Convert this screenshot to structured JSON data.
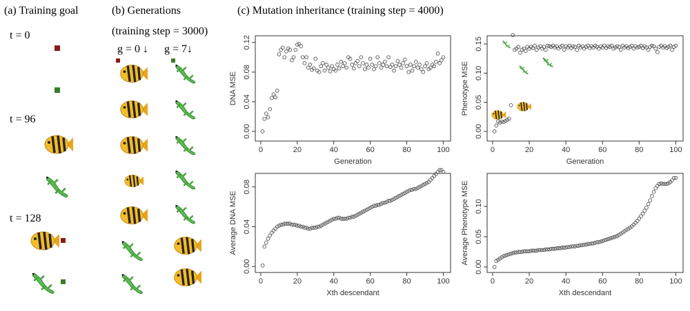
{
  "panels": {
    "a": {
      "title": "(a) Training goal",
      "labels": [
        "t = 0",
        "t = 96",
        "t = 128"
      ]
    },
    "b": {
      "title": "(b) Generations",
      "subtitle": "(training step = 3000)",
      "columns": [
        "g = 0 ↓",
        "g = 7↓"
      ]
    },
    "c": {
      "title": "(c) Mutation inheritance (training step = 4000)"
    }
  },
  "chart_data": [
    {
      "type": "scatter",
      "xlabel": "Generation",
      "ylabel": "DNA MSE",
      "x": [
        1,
        2,
        3,
        4,
        5,
        6,
        7,
        8,
        9,
        10,
        11,
        12,
        13,
        14,
        15,
        16,
        17,
        18,
        19,
        20,
        21,
        22,
        23,
        24,
        25,
        26,
        27,
        28,
        29,
        30,
        31,
        32,
        33,
        34,
        35,
        36,
        37,
        38,
        39,
        40,
        41,
        42,
        43,
        44,
        45,
        46,
        47,
        48,
        49,
        50,
        51,
        52,
        53,
        54,
        55,
        56,
        57,
        58,
        59,
        60,
        61,
        62,
        63,
        64,
        65,
        66,
        67,
        68,
        69,
        70,
        71,
        72,
        73,
        74,
        75,
        76,
        77,
        78,
        79,
        80,
        81,
        82,
        83,
        84,
        85,
        86,
        87,
        88,
        89,
        90,
        91,
        92,
        93,
        94,
        95,
        96,
        97,
        98,
        99,
        100
      ],
      "values": [
        0,
        0.017,
        0.024,
        0.019,
        0.03,
        0.045,
        0.05,
        0.046,
        0.055,
        0.104,
        0.11,
        0.113,
        0.1,
        0.108,
        0.112,
        0.11,
        0.096,
        0.1,
        0.11,
        0.117,
        0.118,
        0.115,
        0.1,
        0.092,
        0.1,
        0.086,
        0.09,
        0.083,
        0.085,
        0.098,
        0.082,
        0.08,
        0.088,
        0.092,
        0.082,
        0.09,
        0.086,
        0.081,
        0.088,
        0.084,
        0.082,
        0.09,
        0.085,
        0.094,
        0.088,
        0.092,
        0.086,
        0.1,
        0.098,
        0.09,
        0.085,
        0.092,
        0.095,
        0.088,
        0.1,
        0.092,
        0.084,
        0.09,
        0.086,
        0.098,
        0.09,
        0.084,
        0.088,
        0.1,
        0.092,
        0.086,
        0.09,
        0.094,
        0.088,
        0.1,
        0.087,
        0.09,
        0.082,
        0.088,
        0.095,
        0.09,
        0.086,
        0.092,
        0.097,
        0.088,
        0.08,
        0.09,
        0.082,
        0.088,
        0.094,
        0.086,
        0.09,
        0.084,
        0.08,
        0.088,
        0.092,
        0.084,
        0.086,
        0.09,
        0.088,
        0.094,
        0.105,
        0.092,
        0.096,
        0.1
      ],
      "xlim": [
        -3,
        104
      ],
      "ylim": [
        -0.013,
        0.129
      ],
      "xticks": [
        0,
        20,
        40,
        60,
        80,
        100
      ],
      "yticks": [
        {
          "value": 0,
          "label": "0.00"
        },
        0.04,
        0.08,
        0.12
      ]
    },
    {
      "type": "scatter",
      "xlabel": "Generation",
      "ylabel": "Phenotype MSE",
      "x": [
        1,
        2,
        3,
        4,
        5,
        6,
        7,
        8,
        9,
        10,
        11,
        12,
        13,
        14,
        15,
        16,
        17,
        18,
        19,
        20,
        21,
        22,
        23,
        24,
        25,
        26,
        27,
        28,
        29,
        30,
        31,
        32,
        33,
        34,
        35,
        36,
        37,
        38,
        39,
        40,
        41,
        42,
        43,
        44,
        45,
        46,
        47,
        48,
        49,
        50,
        51,
        52,
        53,
        54,
        55,
        56,
        57,
        58,
        59,
        60,
        61,
        62,
        63,
        64,
        65,
        66,
        67,
        68,
        69,
        70,
        71,
        72,
        73,
        74,
        75,
        76,
        77,
        78,
        79,
        80,
        81,
        82,
        83,
        84,
        85,
        86,
        87,
        88,
        89,
        90,
        91,
        92,
        93,
        94,
        95,
        96,
        97,
        98,
        99,
        100
      ],
      "values": [
        0,
        0.01,
        0.017,
        0.015,
        0.017,
        0.016,
        0.018,
        0.02,
        0.022,
        0.045,
        0.165,
        0.14,
        0.142,
        0.145,
        0.135,
        0.14,
        0.142,
        0.138,
        0.145,
        0.142,
        0.145,
        0.143,
        0.147,
        0.14,
        0.144,
        0.146,
        0.142,
        0.145,
        0.14,
        0.147,
        0.146,
        0.145,
        0.147,
        0.144,
        0.146,
        0.142,
        0.145,
        0.147,
        0.14,
        0.146,
        0.144,
        0.147,
        0.143,
        0.146,
        0.145,
        0.14,
        0.147,
        0.144,
        0.146,
        0.142,
        0.145,
        0.147,
        0.143,
        0.146,
        0.144,
        0.147,
        0.145,
        0.142,
        0.146,
        0.144,
        0.147,
        0.143,
        0.146,
        0.145,
        0.147,
        0.142,
        0.144,
        0.146,
        0.145,
        0.14,
        0.147,
        0.144,
        0.146,
        0.143,
        0.145,
        0.147,
        0.142,
        0.146,
        0.144,
        0.145,
        0.147,
        0.143,
        0.146,
        0.144,
        0.14,
        0.145,
        0.147,
        0.146,
        0.142,
        0.136,
        0.145,
        0.147,
        0.144,
        0.146,
        0.143,
        0.145,
        0.147,
        0.14,
        0.145,
        0.147
      ],
      "xlim": [
        -3,
        104
      ],
      "ylim": [
        -0.0165,
        0.164
      ],
      "xticks": [
        0,
        20,
        40,
        60,
        80,
        100
      ],
      "yticks": [
        {
          "value": 0,
          "label": "0.00"
        },
        0.05,
        {
          "value": 0.1,
          "label": "0.10"
        },
        0.15
      ]
    },
    {
      "type": "scatter",
      "xlabel": "Xth descendant",
      "ylabel": "Average DNA MSE",
      "x": [
        1,
        2,
        3,
        4,
        5,
        6,
        7,
        8,
        9,
        10,
        11,
        12,
        13,
        14,
        15,
        16,
        17,
        18,
        19,
        20,
        21,
        22,
        23,
        24,
        25,
        26,
        27,
        28,
        29,
        30,
        31,
        32,
        33,
        34,
        35,
        36,
        37,
        38,
        39,
        40,
        41,
        42,
        43,
        44,
        45,
        46,
        47,
        48,
        49,
        50,
        51,
        52,
        53,
        54,
        55,
        56,
        57,
        58,
        59,
        60,
        61,
        62,
        63,
        64,
        65,
        66,
        67,
        68,
        69,
        70,
        71,
        72,
        73,
        74,
        75,
        76,
        77,
        78,
        79,
        80,
        81,
        82,
        83,
        84,
        85,
        86,
        87,
        88,
        89,
        90,
        91,
        92,
        93,
        94,
        95,
        96,
        97,
        98,
        99,
        100
      ],
      "values": [
        0.001,
        0.02,
        0.024,
        0.028,
        0.031,
        0.034,
        0.036,
        0.038,
        0.04,
        0.041,
        0.042,
        0.042,
        0.043,
        0.043,
        0.043,
        0.043,
        0.042,
        0.042,
        0.042,
        0.041,
        0.041,
        0.04,
        0.04,
        0.039,
        0.039,
        0.038,
        0.038,
        0.039,
        0.039,
        0.039,
        0.04,
        0.04,
        0.041,
        0.042,
        0.043,
        0.044,
        0.045,
        0.046,
        0.047,
        0.048,
        0.048,
        0.049,
        0.049,
        0.048,
        0.048,
        0.048,
        0.048,
        0.049,
        0.049,
        0.05,
        0.05,
        0.051,
        0.052,
        0.053,
        0.054,
        0.055,
        0.056,
        0.057,
        0.058,
        0.059,
        0.06,
        0.061,
        0.061,
        0.062,
        0.062,
        0.063,
        0.064,
        0.064,
        0.065,
        0.066,
        0.066,
        0.067,
        0.068,
        0.069,
        0.07,
        0.071,
        0.072,
        0.073,
        0.074,
        0.075,
        0.076,
        0.077,
        0.077,
        0.078,
        0.078,
        0.079,
        0.08,
        0.081,
        0.082,
        0.083,
        0.084,
        0.085,
        0.087,
        0.089,
        0.091,
        0.093,
        0.095,
        0.097,
        0.097,
        0.095
      ],
      "xlim": [
        -3,
        104
      ],
      "ylim": [
        -0.006,
        0.0936
      ],
      "xticks": [
        0,
        20,
        40,
        60,
        80,
        100
      ],
      "yticks": [
        {
          "value": 0,
          "label": "0.00"
        },
        0.04,
        0.08
      ]
    },
    {
      "type": "scatter",
      "xlabel": "Xth descendant",
      "ylabel": "Average Phenotype MSE",
      "x": [
        1,
        2,
        3,
        4,
        5,
        6,
        7,
        8,
        9,
        10,
        11,
        12,
        13,
        14,
        15,
        16,
        17,
        18,
        19,
        20,
        21,
        22,
        23,
        24,
        25,
        26,
        27,
        28,
        29,
        30,
        31,
        32,
        33,
        34,
        35,
        36,
        37,
        38,
        39,
        40,
        41,
        42,
        43,
        44,
        45,
        46,
        47,
        48,
        49,
        50,
        51,
        52,
        53,
        54,
        55,
        56,
        57,
        58,
        59,
        60,
        61,
        62,
        63,
        64,
        65,
        66,
        67,
        68,
        69,
        70,
        71,
        72,
        73,
        74,
        75,
        76,
        77,
        78,
        79,
        80,
        81,
        82,
        83,
        84,
        85,
        86,
        87,
        88,
        89,
        90,
        91,
        92,
        93,
        94,
        95,
        96,
        97,
        98,
        99,
        100
      ],
      "values": [
        0,
        0.01,
        0.012,
        0.014,
        0.016,
        0.018,
        0.019,
        0.02,
        0.021,
        0.022,
        0.023,
        0.024,
        0.024,
        0.025,
        0.025,
        0.025,
        0.026,
        0.026,
        0.026,
        0.026,
        0.027,
        0.027,
        0.027,
        0.027,
        0.028,
        0.028,
        0.028,
        0.028,
        0.029,
        0.029,
        0.029,
        0.03,
        0.03,
        0.03,
        0.031,
        0.031,
        0.031,
        0.032,
        0.032,
        0.032,
        0.033,
        0.033,
        0.034,
        0.034,
        0.034,
        0.035,
        0.035,
        0.036,
        0.036,
        0.037,
        0.037,
        0.038,
        0.038,
        0.039,
        0.039,
        0.04,
        0.041,
        0.041,
        0.042,
        0.043,
        0.044,
        0.045,
        0.046,
        0.047,
        0.048,
        0.049,
        0.05,
        0.051,
        0.053,
        0.055,
        0.057,
        0.059,
        0.061,
        0.063,
        0.065,
        0.067,
        0.07,
        0.073,
        0.076,
        0.08,
        0.084,
        0.088,
        0.093,
        0.098,
        0.104,
        0.11,
        0.117,
        0.124,
        0.13,
        0.134,
        0.137,
        0.138,
        0.137,
        0.137,
        0.137,
        0.138,
        0.14,
        0.143,
        0.147,
        0.147
      ],
      "xlim": [
        -3,
        104
      ],
      "ylim": [
        -0.009,
        0.1545
      ],
      "xticks": [
        0,
        20,
        40,
        60,
        80,
        100
      ],
      "yticks": [
        {
          "value": 0,
          "label": "0.00"
        },
        0.05,
        {
          "value": 0.1,
          "label": "0.10"
        }
      ]
    }
  ]
}
